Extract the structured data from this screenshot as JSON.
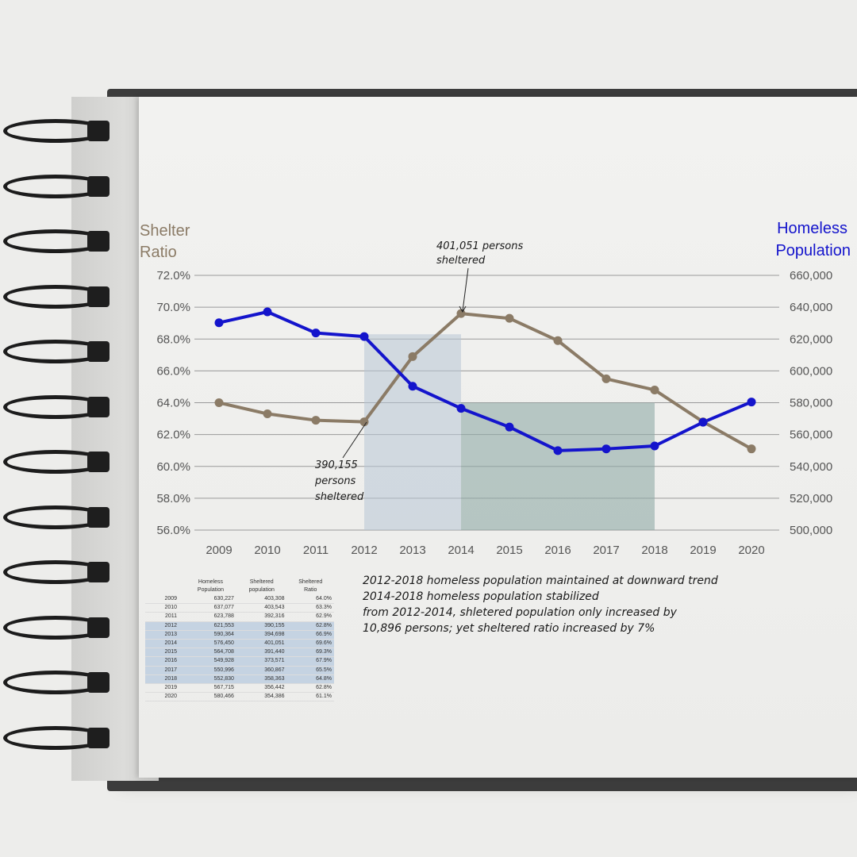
{
  "chart_data": {
    "type": "line",
    "x": [
      2009,
      2010,
      2011,
      2012,
      2013,
      2014,
      2015,
      2016,
      2017,
      2018,
      2019,
      2020
    ],
    "series": [
      {
        "name": "Shelter Ratio",
        "axis": "left",
        "color": "#8b7b66",
        "values": [
          64.0,
          63.3,
          62.9,
          62.8,
          66.9,
          69.6,
          69.3,
          67.9,
          65.5,
          64.8,
          62.8,
          61.1
        ]
      },
      {
        "name": "Homeless Population",
        "axis": "right",
        "color": "#1414cc",
        "values": [
          630227,
          637077,
          623788,
          621553,
          590364,
          576450,
          564708,
          549928,
          550996,
          552830,
          567715,
          580466
        ]
      }
    ],
    "left_axis": {
      "title_line1": "Shelter",
      "title_line2": "Ratio",
      "min": 56.0,
      "max": 72.0,
      "step": 2.0,
      "ticks": [
        "56.0%",
        "58.0%",
        "60.0%",
        "62.0%",
        "64.0%",
        "66.0%",
        "68.0%",
        "70.0%",
        "72.0%"
      ]
    },
    "right_axis": {
      "title_line1": "Homeless",
      "title_line2": "Population",
      "min": 500000,
      "max": 660000,
      "step": 20000,
      "ticks": [
        "500,000",
        "520,000",
        "540,000",
        "560,000",
        "580,000",
        "600,000",
        "620,000",
        "640,000",
        "660,000"
      ]
    },
    "x_ticks": [
      "2009",
      "2010",
      "2011",
      "2012",
      "2013",
      "2014",
      "2015",
      "2016",
      "2017",
      "2018",
      "2019",
      "2020"
    ],
    "grid": true,
    "highlights": [
      {
        "from": 2012,
        "to": 2014,
        "top_value": 68.3,
        "color": "#b8c6d6"
      },
      {
        "from": 2014,
        "to": 2018,
        "top_value": 64.0,
        "color": "#8faaa6"
      }
    ],
    "annotations": [
      {
        "line1": "401,051 persons",
        "line2": "sheltered",
        "line3": "",
        "points_to": 2014
      },
      {
        "line1": "390,155",
        "line2": "persons",
        "line3": "sheltered",
        "points_to": 2012
      }
    ]
  },
  "table": {
    "headers": [
      {
        "line1": "",
        "line2": ""
      },
      {
        "line1": "Homeless",
        "line2": "Population"
      },
      {
        "line1": "Sheltered",
        "line2": "population"
      },
      {
        "line1": "Sheltered",
        "line2": "Ratio"
      }
    ],
    "rows": [
      [
        "2009",
        "630,227",
        "403,308",
        "64.0%"
      ],
      [
        "2010",
        "637,077",
        "403,543",
        "63.3%"
      ],
      [
        "2011",
        "623,788",
        "392,316",
        "62.9%"
      ],
      [
        "2012",
        "621,553",
        "390,155",
        "62.8%"
      ],
      [
        "2013",
        "590,364",
        "394,698",
        "66.9%"
      ],
      [
        "2014",
        "576,450",
        "401,051",
        "69.6%"
      ],
      [
        "2015",
        "564,708",
        "391,440",
        "69.3%"
      ],
      [
        "2016",
        "549,928",
        "373,571",
        "67.9%"
      ],
      [
        "2017",
        "550,996",
        "360,867",
        "65.5%"
      ],
      [
        "2018",
        "552,830",
        "358,363",
        "64.8%"
      ],
      [
        "2019",
        "567,715",
        "356,442",
        "62.8%"
      ],
      [
        "2020",
        "580,466",
        "354,386",
        "61.1%"
      ]
    ],
    "highlighted_rows": [
      3,
      4,
      5,
      6,
      7,
      8,
      9
    ]
  },
  "notes": [
    "2012-2018 homeless population maintained at downward trend",
    "2014-2018 homeless population stabilized",
    "from 2012-2014, shletered population only increased by",
    "10,896 persons; yet sheltered ratio increased by 7%"
  ]
}
